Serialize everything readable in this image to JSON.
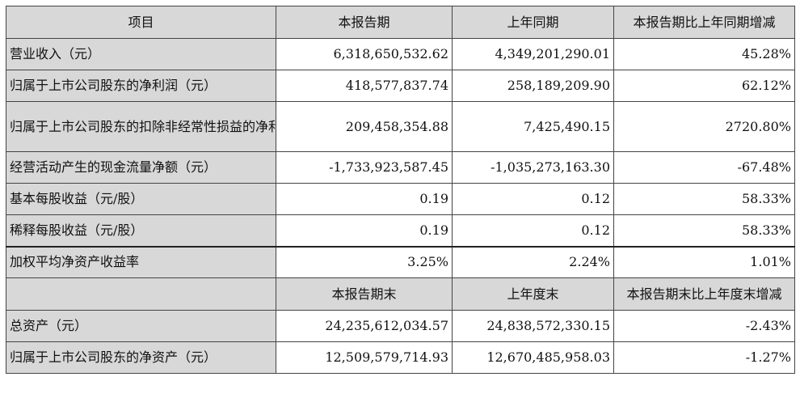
{
  "headers": {
    "item": "项目",
    "current": "本报告期",
    "prior": "上年同期",
    "change": "本报告期比上年同期增减"
  },
  "rows": [
    {
      "label": "营业收入（元）",
      "current": "6,318,650,532.62",
      "prior": "4,349,201,290.01",
      "change": "45.28%"
    },
    {
      "label": "归属于上市公司股东的净利润（元）",
      "current": "418,577,837.74",
      "prior": "258,189,209.90",
      "change": "62.12%"
    },
    {
      "label": "归属于上市公司股东的扣除非经常性损益的净利润（元）",
      "current": "209,458,354.88",
      "prior": "7,425,490.15",
      "change": "2720.80%"
    },
    {
      "label": "经营活动产生的现金流量净额（元）",
      "current": "-1,733,923,587.45",
      "prior": "-1,035,273,163.30",
      "change": "-67.48%"
    },
    {
      "label": "基本每股收益（元/股）",
      "current": "0.19",
      "prior": "0.12",
      "change": "58.33%"
    },
    {
      "label": "稀释每股收益（元/股）",
      "current": "0.19",
      "prior": "0.12",
      "change": "58.33%"
    },
    {
      "label": "加权平均净资产收益率",
      "current": "3.25%",
      "prior": "2.24%",
      "change": "1.01%"
    }
  ],
  "headers2": {
    "current": "本报告期末",
    "prior": "上年度末",
    "change": "本报告期末比上年度末增减"
  },
  "rows2": [
    {
      "label": "总资产（元）",
      "current": "24,235,612,034.57",
      "prior": "24,838,572,330.15",
      "change": "-2.43%"
    },
    {
      "label": "归属于上市公司股东的净资产（元）",
      "current": "12,509,579,714.93",
      "prior": "12,670,485,958.03",
      "change": "-1.27%"
    }
  ]
}
